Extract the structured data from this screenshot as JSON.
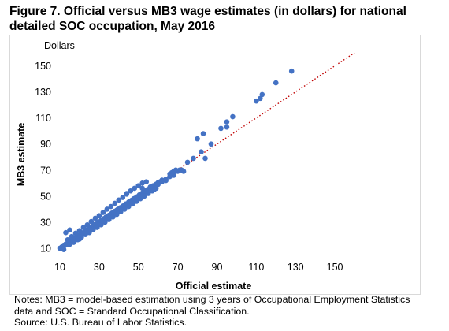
{
  "figure": {
    "title_line1": "Figure 7. Official versus MB3 wage estimates (in dollars) for national",
    "title_line2": "detailed SOC occupation, May 2016",
    "notes_line1": "Notes: MB3 = model-based estimation using 3 years of Occupational Employment Statistics",
    "notes_line2": "data and SOC = Standard Occupational Classification.",
    "source": "Source: U.S. Bureau of Labor Statistics."
  },
  "chart_data": {
    "type": "scatter",
    "y_unit_label": "Dollars",
    "xlabel": "Official estimate",
    "ylabel": "MB3 estimate",
    "xlim": [
      10,
      160
    ],
    "ylim": [
      10,
      160
    ],
    "x_ticks": [
      10,
      30,
      50,
      70,
      90,
      110,
      130,
      150
    ],
    "y_ticks": [
      10,
      30,
      50,
      70,
      90,
      110,
      130,
      150
    ],
    "grid": false,
    "legend": "none",
    "point_color": "#4472c4",
    "reference_line": {
      "style": "dotted",
      "color": "#c00000",
      "from": [
        10,
        10
      ],
      "to": [
        160,
        160
      ]
    },
    "points": [
      [
        10,
        10
      ],
      [
        10.5,
        10.3
      ],
      [
        11,
        11
      ],
      [
        11.5,
        11.2
      ],
      [
        12,
        12.3
      ],
      [
        12.5,
        12.1
      ],
      [
        13,
        13.2
      ],
      [
        13.5,
        12.8
      ],
      [
        14,
        14.1
      ],
      [
        14.5,
        14.6
      ],
      [
        15,
        14.7
      ],
      [
        15.5,
        15.9
      ],
      [
        16,
        15.8
      ],
      [
        16.5,
        16.4
      ],
      [
        17,
        17.3
      ],
      [
        17.5,
        16.9
      ],
      [
        18,
        18.2
      ],
      [
        18.5,
        18.7
      ],
      [
        19,
        18.6
      ],
      [
        19.5,
        19.8
      ],
      [
        20,
        20.1
      ],
      [
        20.5,
        19.8
      ],
      [
        21,
        21.3
      ],
      [
        21.5,
        21.6
      ],
      [
        22,
        21.7
      ],
      [
        22.5,
        22.9
      ],
      [
        23,
        23.1
      ],
      [
        23.5,
        23.2
      ],
      [
        24,
        24.4
      ],
      [
        24.5,
        24.3
      ],
      [
        25,
        25.2
      ],
      [
        25.5,
        25.8
      ],
      [
        26,
        25.7
      ],
      [
        26.5,
        26.9
      ],
      [
        27,
        27.2
      ],
      [
        27.5,
        27.1
      ],
      [
        28,
        28.3
      ],
      [
        28.5,
        28.6
      ],
      [
        29,
        28.8
      ],
      [
        29.5,
        30
      ],
      [
        30,
        30.1
      ],
      [
        30.5,
        30.2
      ],
      [
        31,
        31.4
      ],
      [
        31.5,
        31.3
      ],
      [
        32,
        32.2
      ],
      [
        32.5,
        32.8
      ],
      [
        33,
        32.7
      ],
      [
        33.5,
        33.9
      ],
      [
        34,
        34.2
      ],
      [
        34.5,
        34.1
      ],
      [
        35,
        35.3
      ],
      [
        35.5,
        35.6
      ],
      [
        36,
        35.8
      ],
      [
        36.5,
        37
      ],
      [
        37,
        37.1
      ],
      [
        37.5,
        37.2
      ],
      [
        38,
        38.4
      ],
      [
        38.5,
        38.3
      ],
      [
        39,
        39.2
      ],
      [
        39.5,
        39.8
      ],
      [
        40,
        39.7
      ],
      [
        40.5,
        40.9
      ],
      [
        41,
        41.2
      ],
      [
        41.5,
        41.1
      ],
      [
        42,
        42.3
      ],
      [
        42.5,
        42.6
      ],
      [
        43,
        42.8
      ],
      [
        43.5,
        44
      ],
      [
        44,
        44.1
      ],
      [
        44.5,
        44.2
      ],
      [
        45,
        45.4
      ],
      [
        45.5,
        45.3
      ],
      [
        46,
        46.2
      ],
      [
        46.5,
        46.8
      ],
      [
        47,
        46.7
      ],
      [
        47.5,
        47.9
      ],
      [
        48,
        48.2
      ],
      [
        48.5,
        48.1
      ],
      [
        49,
        49.3
      ],
      [
        49.5,
        49.6
      ],
      [
        50,
        49.8
      ],
      [
        50.5,
        51
      ],
      [
        51,
        51.1
      ],
      [
        51.5,
        51.2
      ],
      [
        52,
        52.4
      ],
      [
        52.5,
        52.3
      ],
      [
        53,
        53.2
      ],
      [
        53.5,
        53.8
      ],
      [
        54,
        53.7
      ],
      [
        54.5,
        54.9
      ],
      [
        55,
        55.2
      ],
      [
        55.5,
        55.1
      ],
      [
        56,
        56.3
      ],
      [
        56.5,
        56.6
      ],
      [
        57,
        56.8
      ],
      [
        57.5,
        58
      ],
      [
        58,
        58.1
      ],
      [
        59,
        59.2
      ],
      [
        60,
        60.4
      ],
      [
        61,
        61
      ],
      [
        62,
        62.3
      ],
      [
        14,
        16.5
      ],
      [
        16,
        19
      ],
      [
        18,
        21.5
      ],
      [
        20,
        23.5
      ],
      [
        22,
        26
      ],
      [
        24,
        28
      ],
      [
        26,
        30.5
      ],
      [
        28,
        33
      ],
      [
        30,
        35
      ],
      [
        32,
        37.5
      ],
      [
        34,
        40
      ],
      [
        36,
        42
      ],
      [
        38,
        44.5
      ],
      [
        40,
        47
      ],
      [
        42,
        49
      ],
      [
        44,
        51.5
      ],
      [
        46,
        54
      ],
      [
        48,
        56
      ],
      [
        50,
        58
      ],
      [
        52,
        60
      ],
      [
        54,
        61
      ],
      [
        15,
        13
      ],
      [
        17,
        14.5
      ],
      [
        19,
        16.5
      ],
      [
        21,
        18.5
      ],
      [
        23,
        20.5
      ],
      [
        25,
        22
      ],
      [
        27,
        24.5
      ],
      [
        29,
        26
      ],
      [
        31,
        28
      ],
      [
        33,
        30
      ],
      [
        35,
        32
      ],
      [
        37,
        34
      ],
      [
        39,
        36
      ],
      [
        41,
        38
      ],
      [
        43,
        40
      ],
      [
        45,
        42
      ],
      [
        47,
        44
      ],
      [
        49,
        46
      ],
      [
        51,
        48
      ],
      [
        53,
        50
      ],
      [
        55,
        52
      ],
      [
        57,
        54
      ],
      [
        59,
        56
      ],
      [
        13,
        22
      ],
      [
        15,
        24
      ],
      [
        12,
        9
      ],
      [
        20,
        17
      ],
      [
        26,
        24
      ],
      [
        44,
        52
      ],
      [
        52,
        56
      ],
      [
        56,
        57
      ],
      [
        60,
        59
      ],
      [
        62,
        61
      ],
      [
        58,
        55
      ],
      [
        64,
        62
      ],
      [
        64,
        63
      ],
      [
        66,
        65
      ],
      [
        67,
        68
      ],
      [
        68,
        66
      ],
      [
        69,
        70
      ],
      [
        70,
        69
      ],
      [
        71,
        70
      ],
      [
        66,
        67
      ],
      [
        68,
        69
      ],
      [
        72,
        70
      ],
      [
        73,
        69
      ],
      [
        75,
        76
      ],
      [
        78,
        79
      ],
      [
        82,
        84
      ],
      [
        84,
        79
      ],
      [
        80,
        94
      ],
      [
        83,
        98
      ],
      [
        87,
        90
      ],
      [
        92,
        102
      ],
      [
        95,
        103
      ],
      [
        98,
        111
      ],
      [
        95,
        107
      ],
      [
        110,
        123
      ],
      [
        112,
        125
      ],
      [
        113,
        128
      ],
      [
        120,
        137
      ],
      [
        128,
        146
      ]
    ]
  }
}
